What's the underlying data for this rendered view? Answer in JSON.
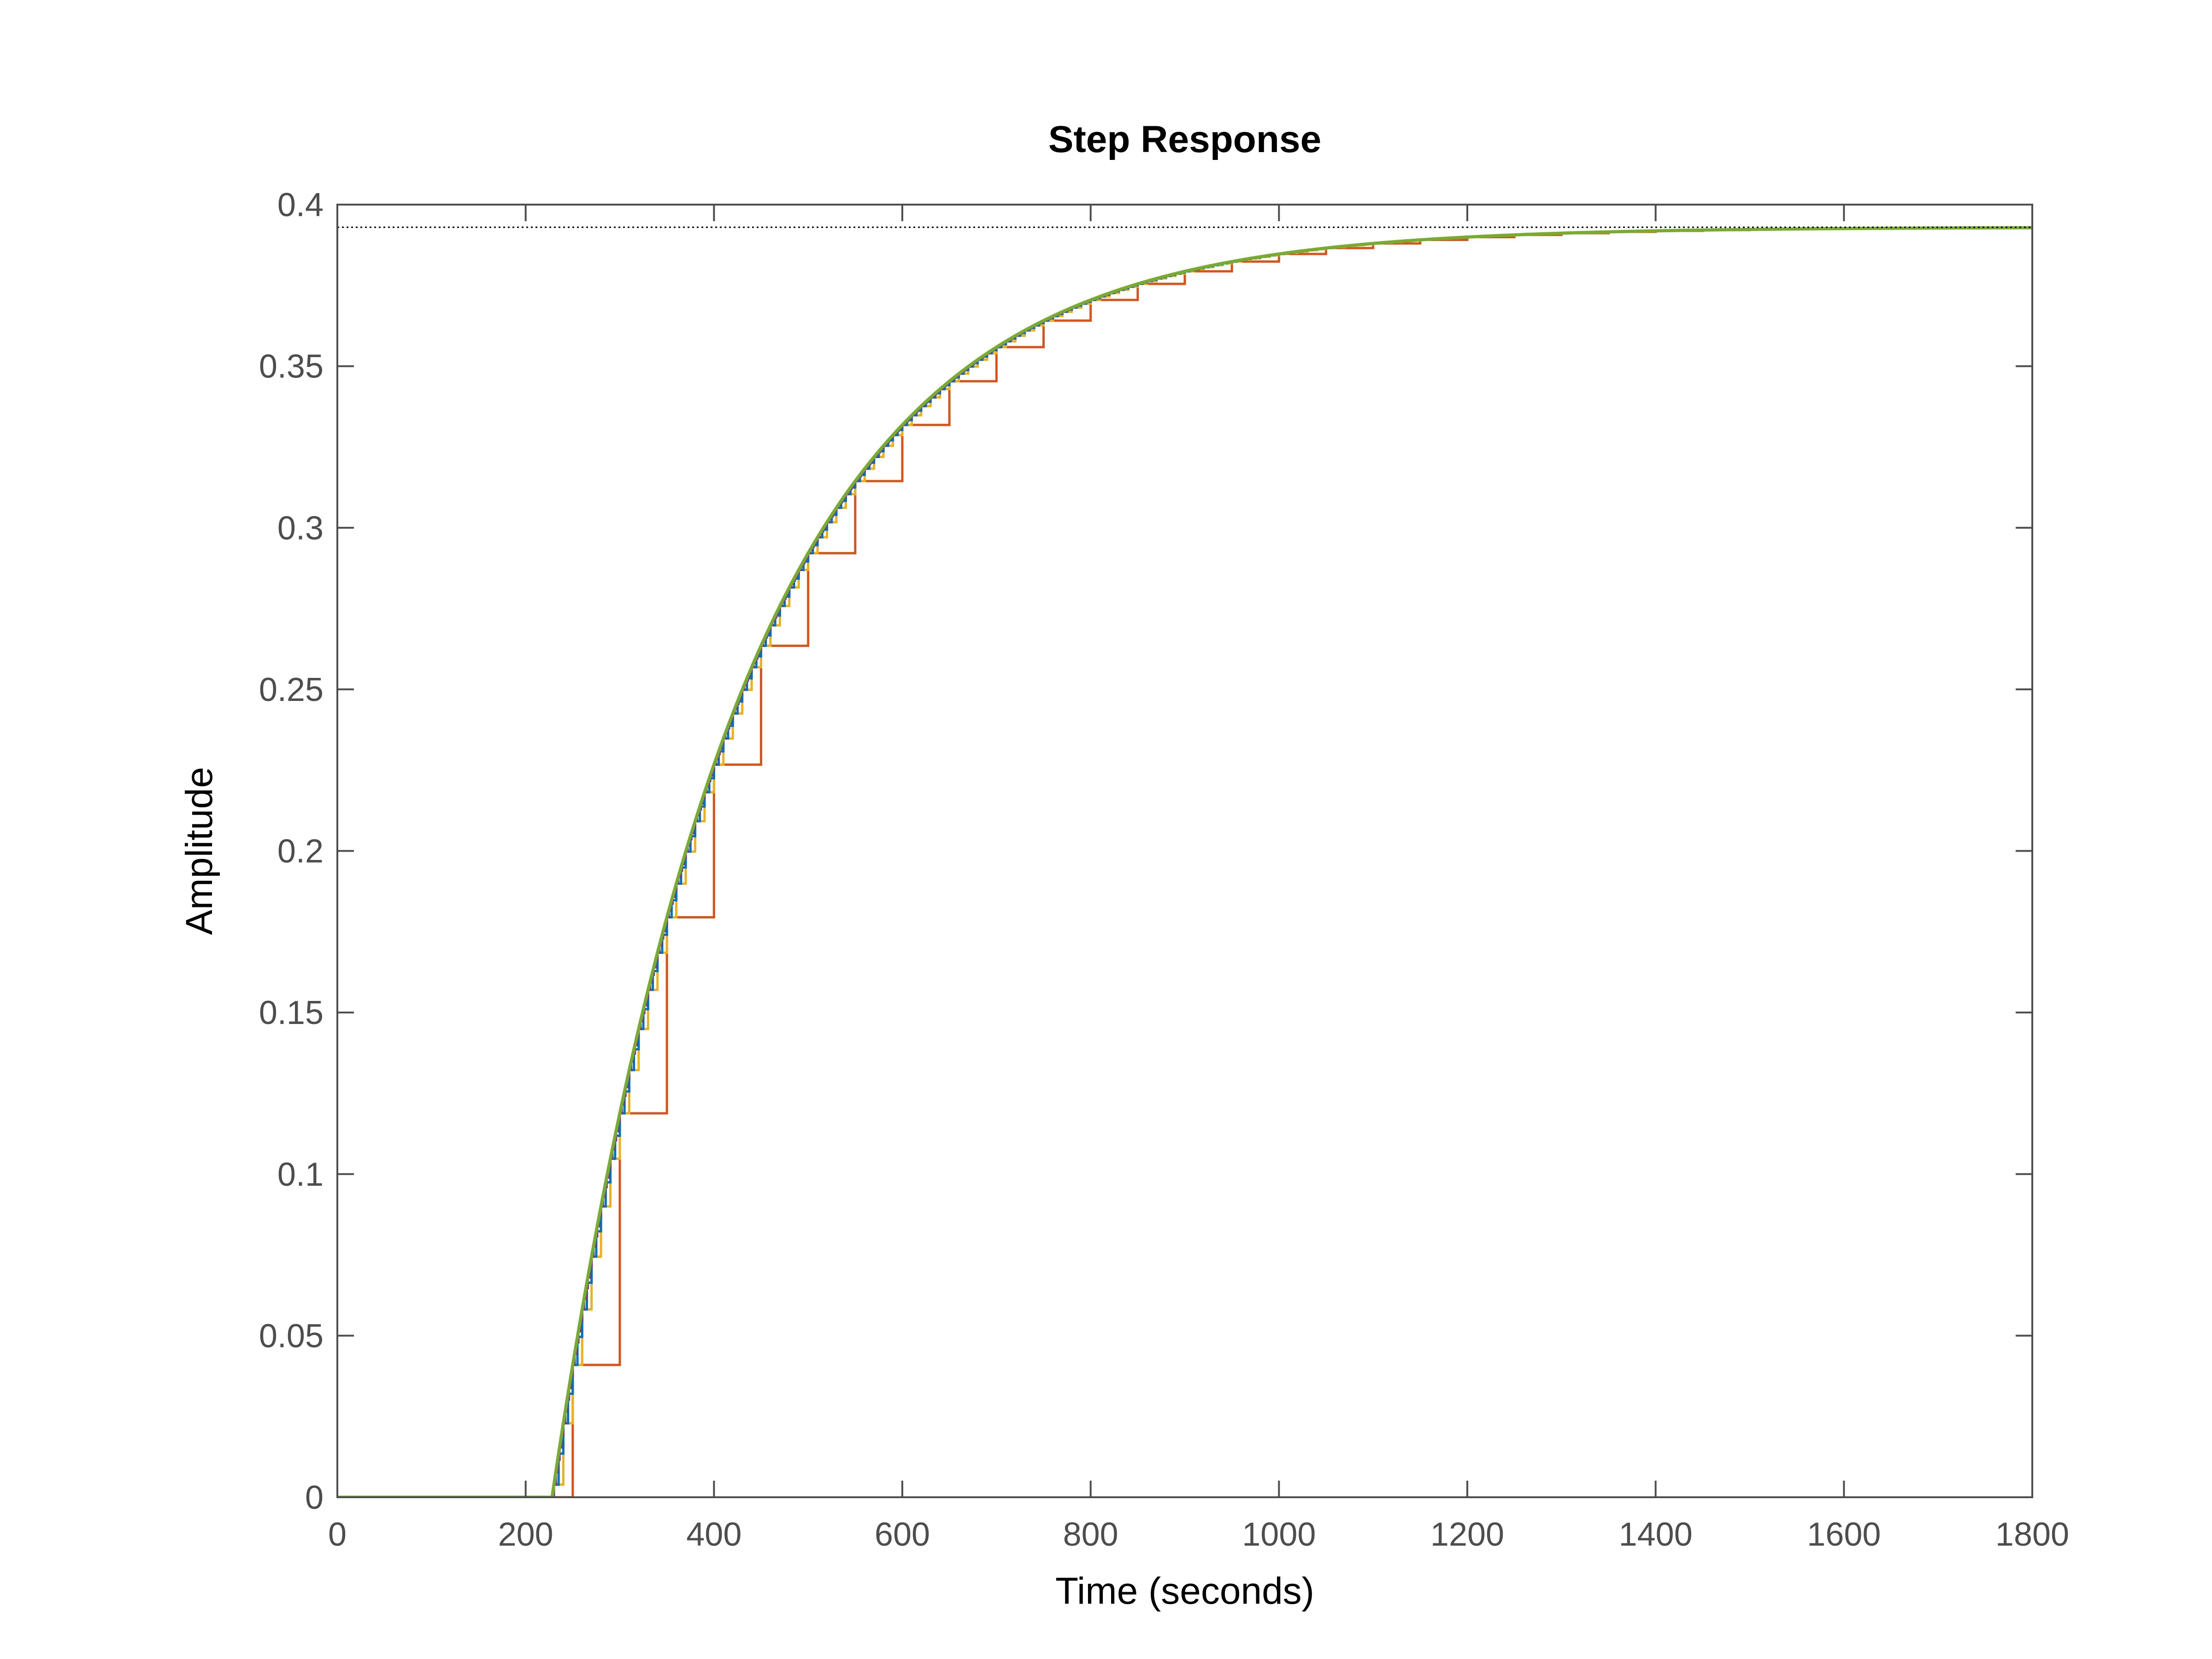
{
  "chart_data": {
    "type": "line",
    "title": "Step Response",
    "xlabel": "Time (seconds)",
    "ylabel": "Amplitude",
    "xlim": [
      0,
      1800
    ],
    "ylim": [
      0,
      0.4
    ],
    "x_ticks": [
      0,
      200,
      400,
      600,
      800,
      1000,
      1200,
      1400,
      1600,
      1800
    ],
    "x_tick_labels": [
      "0",
      "200",
      "400",
      "600",
      "800",
      "1000",
      "1200",
      "1400",
      "1600",
      "1800"
    ],
    "y_ticks": [
      0,
      0.05,
      0.1,
      0.15,
      0.2,
      0.25,
      0.3,
      0.35,
      0.4
    ],
    "y_tick_labels": [
      "0",
      "0.05",
      "0.1",
      "0.15",
      "0.2",
      "0.25",
      "0.3",
      "0.35",
      "0.4"
    ],
    "grid": false,
    "steady_state": 0.393,
    "steady_state_color": "#000000",
    "model": {
      "gain": 0.393,
      "dead_time": 228,
      "time_constant": 200
    },
    "series": [
      {
        "style": "continuous",
        "color": "#77ac30"
      },
      {
        "style": "step",
        "sample_time": 50,
        "color": "#d95319"
      },
      {
        "style": "step",
        "sample_time": 10,
        "color": "#edb120"
      },
      {
        "style": "step",
        "sample_time": 5,
        "color": "#0072bd"
      },
      {
        "style": "step",
        "sample_time": 2,
        "color": "#7e2f8e"
      }
    ]
  }
}
